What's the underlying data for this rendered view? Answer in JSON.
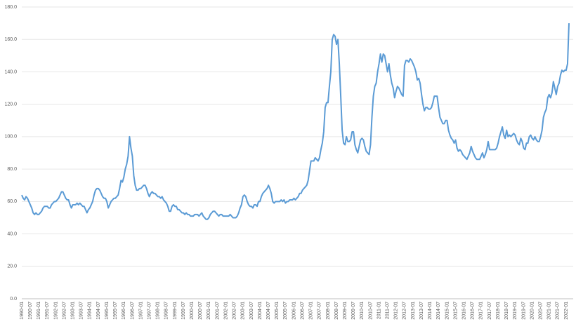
{
  "chart_data": {
    "type": "line",
    "color": "#5b9bd5",
    "grid": true,
    "ylim": [
      0,
      180
    ],
    "yticks": [
      {
        "value": 0,
        "label": "0.0"
      },
      {
        "value": 20,
        "label": "20.0"
      },
      {
        "value": 40,
        "label": "40.0"
      },
      {
        "value": 60,
        "label": "60.0"
      },
      {
        "value": 80,
        "label": "80.0"
      },
      {
        "value": 100,
        "label": "100.0"
      },
      {
        "value": 120,
        "label": "120.0"
      },
      {
        "value": 140,
        "label": "140.0"
      },
      {
        "value": 160,
        "label": "160.0"
      },
      {
        "value": 180,
        "label": "180.0"
      }
    ],
    "categories": [
      "1990-01",
      null,
      null,
      null,
      null,
      null,
      "1990-07",
      null,
      null,
      null,
      null,
      null,
      "1991-01",
      null,
      null,
      null,
      null,
      null,
      "1991-07",
      null,
      null,
      null,
      null,
      null,
      "1992-01",
      null,
      null,
      null,
      null,
      null,
      "1992-07",
      null,
      null,
      null,
      null,
      null,
      "1993-01",
      null,
      null,
      null,
      null,
      null,
      "1993-07",
      null,
      null,
      null,
      null,
      null,
      "1994-01",
      null,
      null,
      null,
      null,
      null,
      "1994-07",
      null,
      null,
      null,
      null,
      null,
      "1995-01",
      null,
      null,
      null,
      null,
      null,
      "1995-07",
      null,
      null,
      null,
      null,
      null,
      "1996-01",
      null,
      null,
      null,
      null,
      null,
      "1996-07",
      null,
      null,
      null,
      null,
      null,
      "1997-01",
      null,
      null,
      null,
      null,
      null,
      "1997-07",
      null,
      null,
      null,
      null,
      null,
      "1998-01",
      null,
      null,
      null,
      null,
      null,
      "1998-07",
      null,
      null,
      null,
      null,
      null,
      "1999-01",
      null,
      null,
      null,
      null,
      null,
      "1999-07",
      null,
      null,
      null,
      null,
      null,
      "2000-01",
      null,
      null,
      null,
      null,
      null,
      "2000-07",
      null,
      null,
      null,
      null,
      null,
      "2001-01",
      null,
      null,
      null,
      null,
      null,
      "2001-07",
      null,
      null,
      null,
      null,
      null,
      "2002-01",
      null,
      null,
      null,
      null,
      null,
      "2002-07",
      null,
      null,
      null,
      null,
      null,
      "2003-01",
      null,
      null,
      null,
      null,
      null,
      "2003-07",
      null,
      null,
      null,
      null,
      null,
      "2004-01",
      null,
      null,
      null,
      null,
      null,
      "2004-07",
      null,
      null,
      null,
      null,
      null,
      "2005-01",
      null,
      null,
      null,
      null,
      null,
      "2005-07",
      null,
      null,
      null,
      null,
      null,
      "2006-01",
      null,
      null,
      null,
      null,
      null,
      "2006-07",
      null,
      null,
      null,
      null,
      null,
      "2007-01",
      null,
      null,
      null,
      null,
      null,
      "2007-07",
      null,
      null,
      null,
      null,
      null,
      "2008-01",
      null,
      null,
      null,
      null,
      null,
      "2008-07",
      null,
      null,
      null,
      null,
      null,
      "2009-01",
      null,
      null,
      null,
      null,
      null,
      "2009-07",
      null,
      null,
      null,
      null,
      null,
      "2010-01",
      null,
      null,
      null,
      null,
      null,
      "2010-07",
      null,
      null,
      null,
      null,
      null,
      "2011-01",
      null,
      null,
      null,
      null,
      null,
      "2011-07",
      null,
      null,
      null,
      null,
      null,
      "2012-01",
      null,
      null,
      null,
      null,
      null,
      "2012-07",
      null,
      null,
      null,
      null,
      null,
      "2013-01",
      null,
      null,
      null,
      null,
      null,
      "2013-07",
      null,
      null,
      null,
      null,
      null,
      "2014-01",
      null,
      null,
      null,
      null,
      null,
      "2014-07",
      null,
      null,
      null,
      null,
      null,
      "2015-01",
      null,
      null,
      null,
      null,
      null,
      "2015-07",
      null,
      null,
      null,
      null,
      null,
      "2016-01",
      null,
      null,
      null,
      null,
      null,
      "2016-07",
      null,
      null,
      null,
      null,
      null,
      "2017-01",
      null,
      null,
      null,
      null,
      null,
      "2017-07",
      null,
      null,
      null,
      null,
      null,
      "2018-01",
      null,
      null,
      null,
      null,
      null,
      "2018-07",
      null,
      null,
      null,
      null,
      null,
      "2019-01",
      null,
      null,
      null,
      null,
      null,
      "2019-07",
      null,
      null,
      null,
      null,
      null,
      "2020-01",
      null,
      null,
      null,
      null,
      null,
      "2020-07",
      null,
      null,
      null,
      null,
      null,
      "2021-01",
      null,
      null,
      null,
      null,
      null,
      "2021-07",
      null,
      null,
      null,
      null,
      null,
      "2022-01",
      null,
      null
    ],
    "values": [
      64,
      62,
      61,
      63,
      62,
      60,
      58,
      56,
      53,
      52,
      53,
      52,
      52,
      53,
      54,
      56,
      57,
      57,
      57,
      56,
      56,
      58,
      59,
      60,
      60,
      61,
      62,
      64,
      66,
      66,
      64,
      62,
      61,
      61,
      58,
      56,
      58,
      58,
      58,
      59,
      58,
      59,
      58,
      57,
      57,
      55,
      53,
      55,
      56,
      58,
      60,
      64,
      67,
      68,
      68,
      67,
      65,
      63,
      62,
      62,
      60,
      56,
      58,
      60,
      61,
      62,
      62,
      63,
      64,
      68,
      73,
      72,
      75,
      80,
      83,
      88,
      100,
      93,
      88,
      76,
      70,
      67,
      67,
      68,
      68,
      69,
      70,
      70,
      68,
      65,
      63,
      65,
      66,
      65,
      65,
      64,
      63,
      63,
      62,
      63,
      61,
      60,
      59,
      57,
      54,
      54,
      57,
      58,
      57,
      57,
      55,
      55,
      54,
      53,
      53,
      52,
      53,
      52,
      52,
      51,
      51,
      51,
      52,
      52,
      52,
      51,
      52,
      53,
      51,
      50,
      49,
      49,
      50,
      52,
      53,
      54,
      54,
      53,
      52,
      51,
      52,
      52,
      51,
      51,
      51,
      51,
      51,
      52,
      51,
      50,
      50,
      50,
      51,
      53,
      56,
      58,
      63,
      64,
      63,
      60,
      58,
      57,
      57,
      56,
      58,
      58,
      57,
      60,
      60,
      63,
      65,
      66,
      67,
      68,
      70,
      68,
      65,
      60,
      59,
      60,
      60,
      60,
      60,
      61,
      60,
      61,
      59,
      60,
      60,
      61,
      61,
      61,
      62,
      61,
      62,
      63,
      65,
      65,
      67,
      68,
      69,
      70,
      73,
      79,
      85,
      85,
      85,
      87,
      86,
      85,
      87,
      92,
      96,
      103,
      118,
      121,
      121,
      131,
      140,
      160,
      163,
      162,
      157,
      160,
      145,
      125,
      104,
      96,
      95,
      100,
      97,
      97,
      98,
      103,
      103,
      95,
      92,
      90,
      94,
      98,
      99,
      98,
      94,
      91,
      90,
      89,
      95,
      112,
      125,
      131,
      133,
      140,
      145,
      151,
      146,
      151,
      150,
      145,
      140,
      145,
      138,
      133,
      130,
      124,
      128,
      131,
      130,
      128,
      126,
      125,
      144,
      147,
      147,
      146,
      148,
      147,
      145,
      143,
      140,
      135,
      136,
      133,
      126,
      120,
      116,
      118,
      118,
      117,
      117,
      118,
      121,
      125,
      125,
      125,
      118,
      112,
      110,
      108,
      108,
      110,
      110,
      104,
      101,
      99,
      98,
      96,
      98,
      93,
      91,
      92,
      91,
      89,
      88,
      87,
      86,
      88,
      90,
      94,
      91,
      89,
      87,
      86,
      86,
      86,
      88,
      90,
      87,
      89,
      92,
      97,
      92,
      92,
      92,
      92,
      92,
      93,
      96,
      100,
      103,
      106,
      101,
      99,
      104,
      100,
      101,
      100,
      101,
      102,
      101,
      98,
      96,
      95,
      99,
      97,
      93,
      92,
      96,
      96,
      100,
      101,
      99,
      98,
      100,
      98,
      97,
      97,
      100,
      104,
      112,
      115,
      117,
      124,
      126,
      124,
      127,
      134,
      130,
      126,
      131,
      133,
      138,
      141,
      140,
      141,
      141,
      145,
      170
    ]
  }
}
